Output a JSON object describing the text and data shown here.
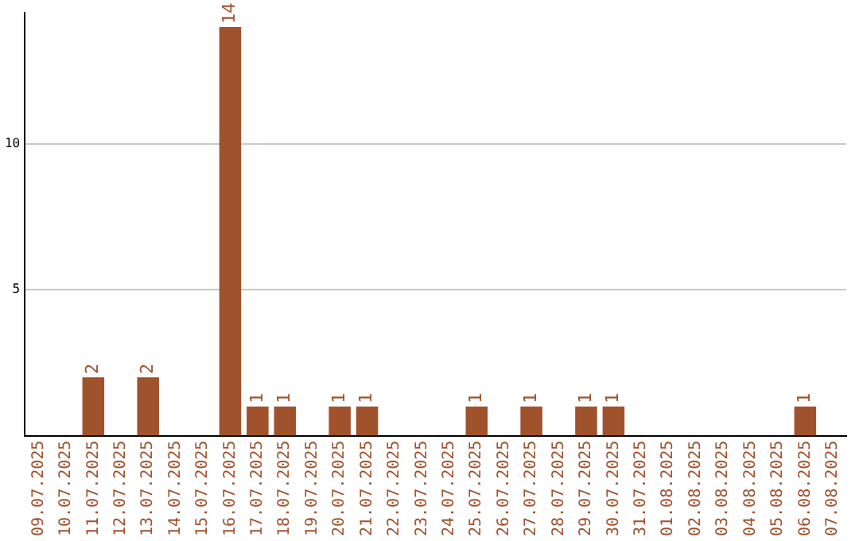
{
  "chart_data": {
    "type": "bar",
    "categories": [
      "09.07.2025",
      "10.07.2025",
      "11.07.2025",
      "12.07.2025",
      "13.07.2025",
      "14.07.2025",
      "15.07.2025",
      "16.07.2025",
      "17.07.2025",
      "18.07.2025",
      "19.07.2025",
      "20.07.2025",
      "21.07.2025",
      "22.07.2025",
      "23.07.2025",
      "24.07.2025",
      "25.07.2025",
      "26.07.2025",
      "27.07.2025",
      "28.07.2025",
      "29.07.2025",
      "30.07.2025",
      "31.07.2025",
      "01.08.2025",
      "02.08.2025",
      "03.08.2025",
      "04.08.2025",
      "05.08.2025",
      "06.08.2025",
      "07.08.2025"
    ],
    "values": [
      0,
      0,
      2,
      0,
      2,
      0,
      0,
      14,
      1,
      1,
      0,
      1,
      1,
      0,
      0,
      0,
      1,
      0,
      1,
      0,
      1,
      1,
      0,
      0,
      0,
      0,
      0,
      0,
      1,
      0
    ],
    "value_labels": [
      null,
      null,
      "2",
      null,
      "2",
      null,
      null,
      "14",
      "1",
      "1",
      null,
      "1",
      "1",
      null,
      null,
      null,
      "1",
      null,
      "1",
      null,
      "1",
      "1",
      null,
      null,
      null,
      null,
      null,
      null,
      "1",
      null
    ],
    "color": "#a0522d",
    "ylim": [
      0,
      14.5
    ],
    "yticks": [
      5,
      10
    ],
    "grid": "y",
    "legend": false
  }
}
